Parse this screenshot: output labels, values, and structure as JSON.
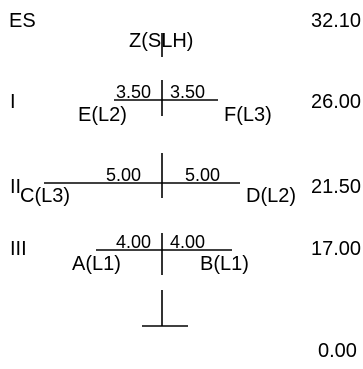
{
  "header": {
    "section_label": "ES",
    "top_node": "Z(SLH)",
    "top_elevation": "32.10"
  },
  "floors": [
    {
      "level": "I",
      "elevation": "26.00",
      "left_value": "3.50",
      "right_value": "3.50",
      "left_node": "E(L2)",
      "right_node": "F(L3)"
    },
    {
      "level": "II",
      "elevation": "21.50",
      "left_value": "5.00",
      "right_value": "5.00",
      "left_node": "C(L3)",
      "right_node": "D(L2)"
    },
    {
      "level": "III",
      "elevation": "17.00",
      "left_value": "4.00",
      "right_value": "4.00",
      "left_node": "A(L1)",
      "right_node": "B(L1)"
    }
  ],
  "base": {
    "elevation": "0.00"
  }
}
